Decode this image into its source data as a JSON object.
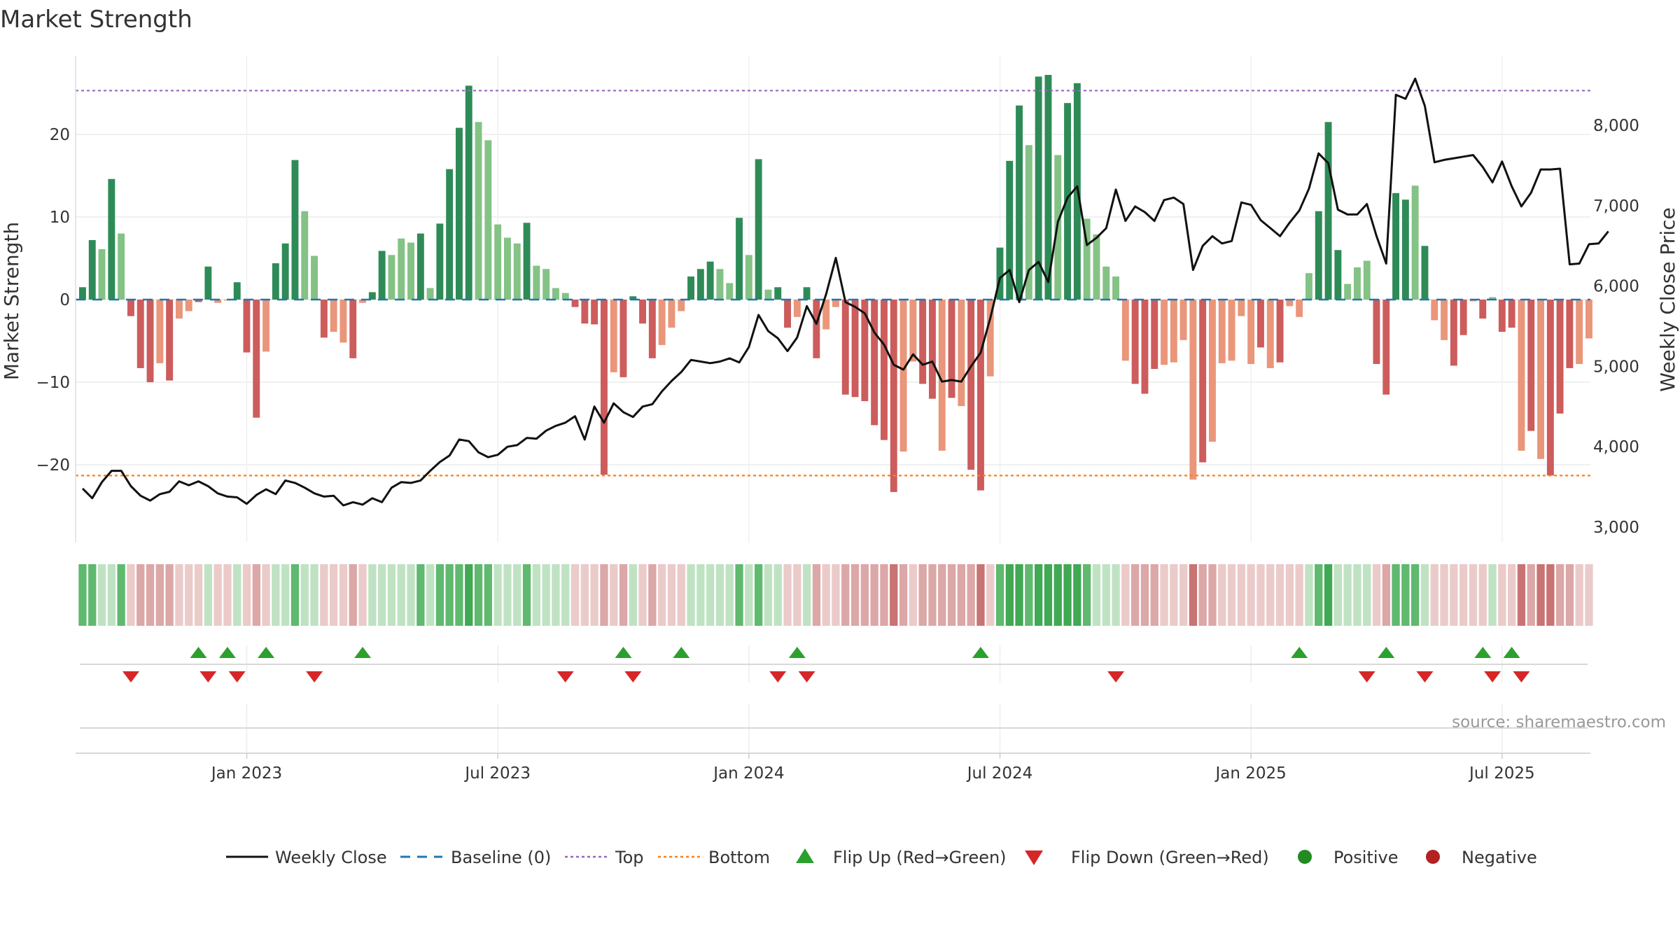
{
  "title": "Market Strength",
  "source": "source: sharemaestro.com",
  "chart_data": {
    "type": "bar+line",
    "title": "Market Strength",
    "ylabel_left": "Market Strength",
    "ylabel_right": "Weekly Close Price",
    "ylim_left": [
      -29,
      30
    ],
    "ylim_right": [
      2800,
      8800
    ],
    "yticks_left": [
      20,
      10,
      0,
      -10,
      -20
    ],
    "yticks_left_labels": [
      "20",
      "10",
      "0",
      "−10",
      "−20"
    ],
    "yticks_right": [
      8000,
      7000,
      6000,
      5000,
      4000,
      3000
    ],
    "yticks_right_labels": [
      "8,000",
      "7,000",
      "6,000",
      "5,000",
      "4,000",
      "3,000"
    ],
    "x_start": "2022-09-04",
    "x_ticks": [
      "Jan 2023",
      "Jul 2023",
      "Jan 2024",
      "Jul 2024",
      "Jan 2025",
      "Jul 2025"
    ],
    "x_tick_weeks": [
      17,
      43,
      69,
      95,
      121,
      147
    ],
    "top_line": 25.3,
    "bottom_line": -21.3,
    "strength": [
      1.5,
      7.2,
      6.1,
      14.6,
      8.0,
      -2.0,
      -8.3,
      -10.0,
      -7.7,
      -9.8,
      -2.3,
      -1.4,
      -0.3,
      4.0,
      -0.4,
      -0.1,
      2.1,
      -6.4,
      -14.3,
      -6.3,
      4.4,
      6.8,
      16.9,
      10.7,
      5.3,
      -4.6,
      -3.9,
      -5.2,
      -7.1,
      -0.4,
      0.9,
      5.9,
      5.4,
      7.4,
      6.9,
      8.0,
      1.4,
      9.2,
      15.8,
      20.8,
      25.9,
      21.5,
      19.3,
      9.1,
      7.5,
      6.8,
      9.3,
      4.1,
      3.7,
      1.4,
      0.8,
      -0.9,
      -2.9,
      -3.0,
      -21.2,
      -8.8,
      -9.4,
      0.4,
      -2.9,
      -7.1,
      -5.5,
      -3.4,
      -1.4,
      2.8,
      3.7,
      4.6,
      3.7,
      2.0,
      9.9,
      5.4,
      17.0,
      1.2,
      1.5,
      -3.4,
      -2.1,
      1.5,
      -7.1,
      -3.6,
      -0.9,
      -11.5,
      -11.8,
      -12.3,
      -15.2,
      -17.0,
      -23.3,
      -18.4,
      -7.5,
      -10.2,
      -12.0,
      -18.3,
      -11.9,
      -12.9,
      -20.6,
      -23.1,
      -9.3,
      6.3,
      16.8,
      23.5,
      18.7,
      27.0,
      27.2,
      17.5,
      23.8,
      26.2,
      9.8,
      7.9,
      4.0,
      2.8,
      -7.4,
      -10.2,
      -11.4,
      -8.4,
      -7.9,
      -7.6,
      -4.9,
      -21.8,
      -19.7,
      -17.2,
      -7.7,
      -7.4,
      -2.0,
      -7.8,
      -5.8,
      -8.3,
      -7.6,
      -0.8,
      -2.1,
      3.2,
      10.7,
      21.5,
      6.0,
      1.9,
      3.9,
      4.7,
      -7.8,
      -11.5,
      12.9,
      12.1,
      13.8,
      6.5,
      -2.5,
      -4.9,
      -8.0,
      -4.3,
      -0.2,
      -2.3,
      0.3,
      -3.9,
      -3.4,
      -18.3,
      -15.9,
      -19.3,
      -21.3,
      -13.8,
      -8.3,
      -7.8,
      -4.7
    ],
    "bar_intensity": [
      2,
      2,
      1,
      2,
      1,
      2,
      2,
      2,
      1,
      2,
      1,
      1,
      2,
      2,
      1,
      1,
      2,
      2,
      2,
      1,
      2,
      2,
      2,
      1,
      1,
      2,
      1,
      1,
      2,
      1,
      2,
      2,
      1,
      1,
      1,
      2,
      1,
      2,
      2,
      2,
      2,
      1,
      1,
      1,
      1,
      1,
      2,
      1,
      1,
      1,
      1,
      2,
      2,
      2,
      2,
      1,
      2,
      2,
      2,
      2,
      1,
      1,
      1,
      2,
      2,
      2,
      1,
      1,
      2,
      1,
      2,
      1,
      2,
      2,
      1,
      2,
      2,
      1,
      1,
      2,
      2,
      2,
      2,
      2,
      2,
      1,
      1,
      2,
      2,
      1,
      2,
      1,
      2,
      2,
      1,
      2,
      2,
      2,
      1,
      2,
      2,
      1,
      2,
      2,
      1,
      1,
      1,
      1,
      1,
      2,
      2,
      2,
      1,
      1,
      1,
      1,
      2,
      1,
      1,
      1,
      1,
      1,
      2,
      1,
      2,
      1,
      1,
      1,
      2,
      2,
      2,
      1,
      1,
      1,
      2,
      2,
      2,
      2,
      1,
      2,
      1,
      1,
      2,
      2,
      1,
      2,
      1,
      2,
      2,
      1,
      2,
      1,
      2,
      2,
      2,
      1,
      1,
      1,
      1,
      1
    ],
    "weekly_close": [
      3480,
      3360,
      3560,
      3700,
      3700,
      3510,
      3390,
      3330,
      3410,
      3440,
      3570,
      3520,
      3570,
      3510,
      3420,
      3380,
      3370,
      3290,
      3400,
      3470,
      3410,
      3580,
      3550,
      3490,
      3420,
      3380,
      3390,
      3270,
      3310,
      3280,
      3360,
      3310,
      3490,
      3560,
      3550,
      3580,
      3700,
      3810,
      3890,
      4090,
      4070,
      3930,
      3870,
      3900,
      4000,
      4020,
      4110,
      4100,
      4200,
      4260,
      4300,
      4380,
      4090,
      4500,
      4300,
      4540,
      4430,
      4370,
      4500,
      4530,
      4690,
      4820,
      4930,
      5080,
      5060,
      5040,
      5060,
      5100,
      5050,
      5240,
      5640,
      5440,
      5350,
      5190,
      5360,
      5750,
      5530,
      5900,
      6350,
      5800,
      5740,
      5660,
      5420,
      5270,
      5020,
      4960,
      5150,
      5020,
      5060,
      4810,
      4830,
      4810,
      5000,
      5170,
      5600,
      6100,
      6200,
      5800,
      6200,
      6300,
      6050,
      6800,
      7100,
      7240,
      6510,
      6600,
      6720,
      7200,
      6810,
      6990,
      6920,
      6810,
      7070,
      7100,
      7020,
      6200,
      6500,
      6620,
      6530,
      6560,
      7040,
      7010,
      6820,
      6720,
      6620,
      6790,
      6940,
      7210,
      7650,
      7530,
      6950,
      6890,
      6890,
      7020,
      6620,
      6280,
      8380,
      8330,
      8580,
      8240,
      7540,
      7570,
      7590,
      7610,
      7630,
      7480,
      7290,
      7550,
      7240,
      6990,
      7160,
      7450,
      7450,
      7460,
      6270,
      6280,
      6520,
      6530,
      6680
    ],
    "strip": [
      2,
      2,
      1,
      1,
      2,
      -1,
      -2,
      -2,
      -2,
      -2,
      -1,
      -1,
      -1,
      1,
      -1,
      -1,
      1,
      -1,
      -2,
      -1,
      1,
      1,
      2,
      1,
      1,
      -1,
      -1,
      -1,
      -2,
      -1,
      1,
      1,
      1,
      1,
      1,
      2,
      1,
      2,
      2,
      2,
      3,
      2,
      2,
      1,
      1,
      1,
      2,
      1,
      1,
      1,
      1,
      -1,
      -1,
      -1,
      -2,
      -1,
      -2,
      1,
      -1,
      -2,
      -1,
      -1,
      -1,
      1,
      1,
      1,
      1,
      1,
      2,
      1,
      2,
      1,
      1,
      -1,
      -1,
      1,
      -2,
      -1,
      -1,
      -2,
      -2,
      -2,
      -2,
      -2,
      -3,
      -2,
      -1,
      -2,
      -2,
      -2,
      -2,
      -2,
      -2,
      -3,
      -1,
      2,
      3,
      3,
      2,
      3,
      3,
      3,
      3,
      3,
      2,
      1,
      1,
      1,
      -1,
      -2,
      -2,
      -2,
      -1,
      -1,
      -1,
      -3,
      -2,
      -2,
      -1,
      -1,
      -1,
      -1,
      -1,
      -1,
      -1,
      -1,
      -1,
      1,
      2,
      3,
      1,
      1,
      1,
      1,
      -1,
      -2,
      2,
      2,
      2,
      1,
      -1,
      -1,
      -1,
      -1,
      -1,
      -1,
      1,
      -1,
      -1,
      -3,
      -2,
      -3,
      -3,
      -2,
      -2,
      -1,
      -1
    ],
    "flip_up_weeks": [
      12,
      15,
      19,
      29,
      56,
      62,
      74,
      93,
      126,
      135,
      145,
      148
    ],
    "flip_down_weeks": [
      5,
      13,
      16,
      24,
      50,
      57,
      72,
      75,
      107,
      133,
      139,
      146,
      149
    ],
    "legend": [
      "Weekly Close",
      "Baseline (0)",
      "Top",
      "Bottom",
      "Flip Up (Red→Green)",
      "Flip Down (Green→Red)",
      "Positive",
      "Negative"
    ],
    "colors": {
      "green_strong": "#2e8b57",
      "green_light": "#84c285",
      "red_strong": "#cd5c5c",
      "red_light": "#e9967a",
      "baseline": "#1f77b4",
      "top": "#9467bd",
      "bottom": "#ff7f0e",
      "line": "#111111",
      "flip_up": "#2ca02c",
      "flip_down": "#d62728",
      "positive": "#228b22",
      "negative": "#b22222"
    }
  }
}
